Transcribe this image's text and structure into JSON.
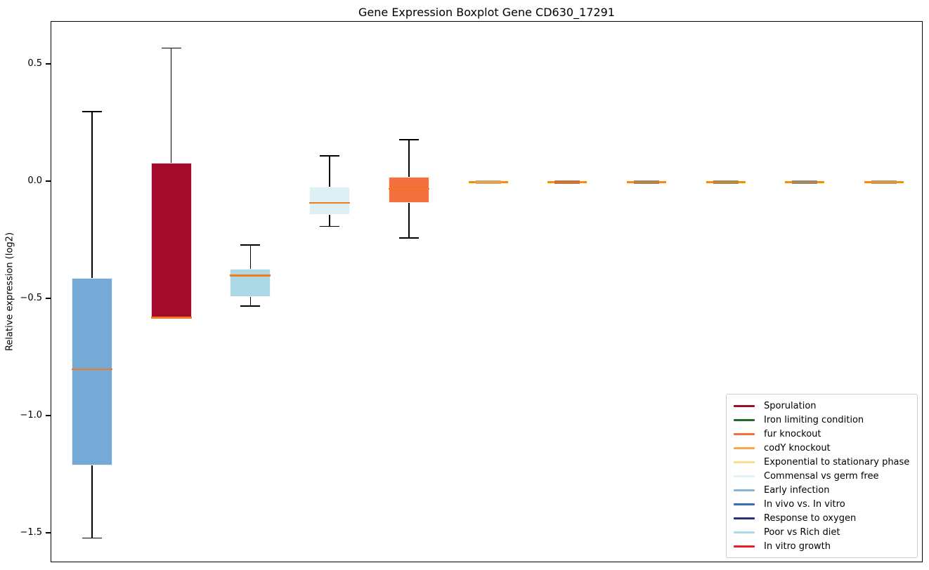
{
  "figure": {
    "title": "Gene Expression Boxplot Gene CD630_17291",
    "ylabel": "Relative expression (log2)"
  },
  "chart_data": {
    "type": "boxplot",
    "title": "Gene Expression Boxplot Gene CD630_17291",
    "xlabel": "",
    "ylabel": "Relative expression (log2)",
    "ylim": [
      -1.63,
      0.68
    ],
    "grid": false,
    "legend_position": "lower right",
    "yticks": [
      {
        "value": 0.5,
        "label": "0.5"
      },
      {
        "value": 0.0,
        "label": "0.0"
      },
      {
        "value": -0.5,
        "label": "−0.5"
      },
      {
        "value": -1.0,
        "label": "−1.0"
      },
      {
        "value": -1.5,
        "label": "−1.5"
      }
    ],
    "median_color": "#F57A1F",
    "flat_line_color": "#FF8C00",
    "whisker_color": "#000000",
    "boxes": [
      {
        "condition": "Early infection",
        "fill": "#74AAD5",
        "whisker_low": -1.52,
        "q1": -1.21,
        "median": -0.8,
        "q3": -0.41,
        "whisker_high": 0.3
      },
      {
        "condition": "Sporulation",
        "fill": "#A40A2B",
        "whisker_low": -0.58,
        "q1": -0.58,
        "median": -0.58,
        "q3": 0.08,
        "whisker_high": 0.57
      },
      {
        "condition": "Poor vs Rich diet",
        "fill": "#ADD8E6",
        "whisker_low": -0.53,
        "q1": -0.49,
        "median": -0.4,
        "q3": -0.37,
        "whisker_high": -0.27
      },
      {
        "condition": "Commensal vs germ free",
        "fill": "#DEEFF6",
        "whisker_low": -0.19,
        "q1": -0.14,
        "median": -0.09,
        "q3": -0.02,
        "whisker_high": 0.11
      },
      {
        "condition": "fur knockout",
        "fill": "#F3703E",
        "whisker_low": -0.24,
        "q1": -0.09,
        "median": -0.03,
        "q3": 0.02,
        "whisker_high": 0.18
      },
      {
        "condition": "",
        "flat": true,
        "median": 0.0,
        "center_color": "#D8A55E"
      },
      {
        "condition": "",
        "flat": true,
        "median": 0.0,
        "center_color": "#C4763B"
      },
      {
        "condition": "",
        "flat": true,
        "median": 0.0,
        "center_color": "#B08455"
      },
      {
        "condition": "",
        "flat": true,
        "median": 0.0,
        "center_color": "#AF8C4A"
      },
      {
        "condition": "",
        "flat": true,
        "median": 0.0,
        "center_color": "#A18866"
      },
      {
        "condition": "",
        "flat": true,
        "median": 0.0,
        "center_color": "#CC9A55"
      }
    ],
    "legend": {
      "entries": [
        {
          "label": "Sporulation",
          "color": "#9A1127"
        },
        {
          "label": "Iron limiting condition",
          "color": "#23692B"
        },
        {
          "label": "fur knockout",
          "color": "#F4713C"
        },
        {
          "label": "codY knockout",
          "color": "#F7A64D"
        },
        {
          "label": "Exponential to stationary phase",
          "color": "#FADE8B"
        },
        {
          "label": "Commensal vs germ free",
          "color": "#E2F1F7"
        },
        {
          "label": "Early infection",
          "color": "#85B5D8"
        },
        {
          "label": "In vivo vs. In vitro",
          "color": "#3A6DAE"
        },
        {
          "label": "Response to oxygen",
          "color": "#2B2D7E"
        },
        {
          "label": "Poor vs Rich diet",
          "color": "#AFD9E8"
        },
        {
          "label": "In vitro growth",
          "color": "#EC1C24"
        }
      ]
    }
  }
}
